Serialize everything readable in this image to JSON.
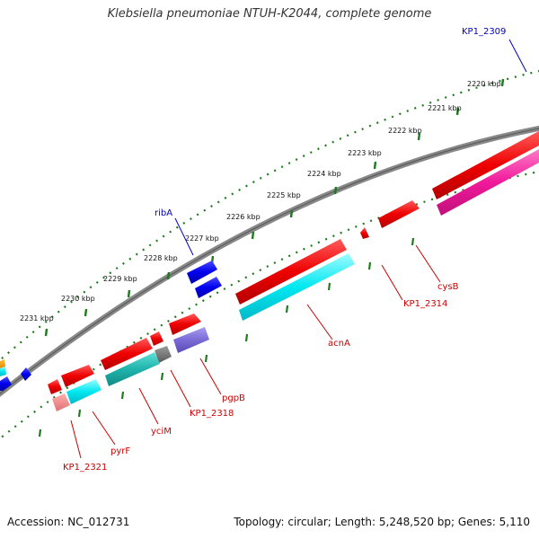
{
  "title": "Klebsiella pneumoniae NTUH-K2044, complete genome",
  "accession": "Accession: NC_012731",
  "summary": "Topology: circular; Length: 5,248,520 bp; Genes: 5,110",
  "colors": {
    "backbone": "#777777",
    "ticks": "#1f7a1f",
    "label_blue": "#0000cc",
    "label_red": "#cc0000"
  },
  "scale_labels": [
    "2220 kbp",
    "2221 kbp",
    "2222 kbp",
    "2223 kbp",
    "2224 kbp",
    "2225 kbp",
    "2226 kbp",
    "2227 kbp",
    "2228 kbp",
    "2229 kbp",
    "2230 kbp",
    "2231 kbp"
  ],
  "gene_labels": {
    "KP1_2309": "KP1_2309",
    "ribA": "ribA",
    "cysB": "cysB",
    "KP1_2314": "KP1_2314",
    "acnA": "acnA",
    "pgpB": "pgpB",
    "KP1_2318": "KP1_2318",
    "yciM": "yciM",
    "pyrF": "pyrF",
    "KP1_2321": "KP1_2321"
  }
}
